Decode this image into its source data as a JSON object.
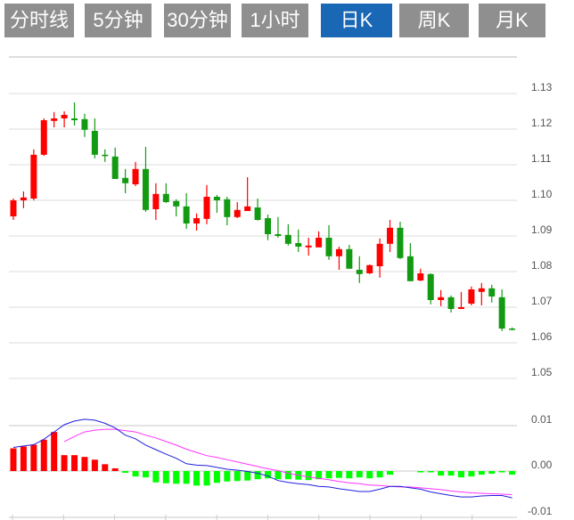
{
  "tabs": [
    {
      "label": "分时线",
      "active": false
    },
    {
      "label": "5分钟",
      "active": false
    },
    {
      "label": "30分钟",
      "active": false
    },
    {
      "label": "1小时",
      "active": false
    },
    {
      "label": "日K",
      "active": true
    },
    {
      "label": "周K",
      "active": false
    },
    {
      "label": "月K",
      "active": false
    }
  ],
  "colors": {
    "tab_bg": "#8f8f8f",
    "tab_active": "#1a67b5",
    "up": "#ff0000",
    "down": "#129b12",
    "hist_up": "#ff0000",
    "hist_down": "#00ff00",
    "dif": "#1f1fdc",
    "dea": "#ff33ff"
  },
  "chart_data": [
    {
      "type": "candlestick",
      "ylim": [
        1.05,
        1.13
      ],
      "y_ticks": [
        "1.13",
        "1.12",
        "1.11",
        "1.10",
        "1.09",
        "1.08",
        "1.07",
        "1.06",
        "1.05"
      ],
      "ohlc": [
        [
          1.0955,
          1.1005,
          1.0945,
          1.1
        ],
        [
          1.1,
          1.1025,
          1.0978,
          1.1008
        ],
        [
          1.1005,
          1.1143,
          1.1,
          1.1128
        ],
        [
          1.1128,
          1.123,
          1.1125,
          1.1225
        ],
        [
          1.1223,
          1.1248,
          1.1205,
          1.123
        ],
        [
          1.123,
          1.125,
          1.1205,
          1.124
        ],
        [
          1.123,
          1.1275,
          1.121,
          1.1225
        ],
        [
          1.1228,
          1.1243,
          1.1178,
          1.1198
        ],
        [
          1.1195,
          1.123,
          1.1118,
          1.1128
        ],
        [
          1.1128,
          1.1143,
          1.1108,
          1.1125
        ],
        [
          1.1123,
          1.1148,
          1.106,
          1.106
        ],
        [
          1.1063,
          1.1088,
          1.102,
          1.1048
        ],
        [
          1.1045,
          1.1108,
          1.104,
          1.1088
        ],
        [
          1.1088,
          1.115,
          1.0968,
          1.0973
        ],
        [
          1.0975,
          1.1048,
          1.0945,
          1.1018
        ],
        [
          1.1018,
          1.1048,
          1.0993,
          1.0995
        ],
        [
          1.0998,
          1.1003,
          1.0955,
          1.0983
        ],
        [
          1.0983,
          1.102,
          1.092,
          1.0935
        ],
        [
          1.0935,
          1.0963,
          1.0915,
          1.095
        ],
        [
          1.0948,
          1.1043,
          1.0933,
          1.101
        ],
        [
          1.101,
          1.1015,
          1.0965,
          1.1
        ],
        [
          1.1003,
          1.101,
          1.093,
          1.0953
        ],
        [
          1.0953,
          1.0995,
          1.095,
          1.0973
        ],
        [
          1.097,
          1.1065,
          1.097,
          1.0983
        ],
        [
          1.098,
          1.1005,
          1.0943,
          1.0945
        ],
        [
          1.095,
          1.096,
          1.0888,
          1.0905
        ],
        [
          1.0905,
          1.0953,
          1.0895,
          1.09
        ],
        [
          1.0903,
          1.0933,
          1.0873,
          1.0878
        ],
        [
          1.088,
          1.0918,
          1.0855,
          1.087
        ],
        [
          1.0868,
          1.0895,
          1.0845,
          1.0873
        ],
        [
          1.0868,
          1.0913,
          1.0868,
          1.0895
        ],
        [
          1.0895,
          1.093,
          1.0833,
          1.0843
        ],
        [
          1.0843,
          1.087,
          1.0805,
          1.0863
        ],
        [
          1.0863,
          1.0875,
          1.0808,
          1.0808
        ],
        [
          1.0805,
          1.0843,
          1.0768,
          1.0793
        ],
        [
          1.0795,
          1.082,
          1.0793,
          1.0818
        ],
        [
          1.0815,
          1.0893,
          1.0783,
          1.0878
        ],
        [
          1.0878,
          1.0945,
          1.0855,
          1.0923
        ],
        [
          1.0923,
          1.094,
          1.0835,
          1.0838
        ],
        [
          1.0843,
          1.088,
          1.0773,
          1.0773
        ],
        [
          1.0775,
          1.0808,
          1.0773,
          1.0795
        ],
        [
          1.0793,
          1.0795,
          1.0708,
          1.072
        ],
        [
          1.072,
          1.0748,
          1.0703,
          1.0728
        ],
        [
          1.0728,
          1.0733,
          1.0685,
          1.0695
        ],
        [
          1.0695,
          1.0743,
          1.0695,
          1.07
        ],
        [
          1.071,
          1.0758,
          1.0705,
          1.075
        ],
        [
          1.0743,
          1.0768,
          1.0705,
          1.0753
        ],
        [
          1.0753,
          1.0763,
          1.0713,
          1.073
        ],
        [
          1.0728,
          1.075,
          1.0633,
          1.064
        ],
        [
          1.064,
          1.0643,
          1.0635,
          1.0638
        ]
      ],
      "grid": true
    },
    {
      "type": "macd",
      "ylim": [
        -0.01,
        0.01
      ],
      "y_ticks": [
        "0.01",
        "0.00",
        "-0.01"
      ],
      "histogram": [
        0.005,
        0.0054,
        0.0058,
        0.0069,
        0.0086,
        0.0035,
        0.0035,
        0.0031,
        0.0025,
        0.0015,
        0.0006,
        -0.0004,
        -0.0012,
        -0.0014,
        -0.0025,
        -0.0027,
        -0.0028,
        -0.0028,
        -0.0032,
        -0.0032,
        -0.0026,
        -0.0023,
        -0.0022,
        -0.0021,
        -0.0018,
        -0.0016,
        -0.0018,
        -0.0018,
        -0.0019,
        -0.002,
        -0.0018,
        -0.0016,
        -0.0015,
        -0.0016,
        -0.0014,
        -0.0016,
        -0.0014,
        -0.0008,
        0,
        0,
        -0.0003,
        -0.0003,
        -0.001,
        -0.001,
        -0.0014,
        -0.0012,
        -0.0008,
        -0.0006,
        -0.0003,
        -0.0008
      ],
      "dif": [
        0.0052,
        0.0055,
        0.0058,
        0.007,
        0.0086,
        0.0102,
        0.011,
        0.0114,
        0.0112,
        0.0105,
        0.0095,
        0.0079,
        0.0071,
        0.0057,
        0.0047,
        0.0037,
        0.0028,
        0.0016,
        0.0013,
        0.0012,
        0.0008,
        0.0004,
        0.0002,
        -0.0001,
        -0.0005,
        -0.0011,
        -0.0021,
        -0.0025,
        -0.0028,
        -0.003,
        -0.0034,
        -0.0035,
        -0.0039,
        -0.0042,
        -0.0045,
        -0.0045,
        -0.004,
        -0.0034,
        -0.0034,
        -0.0037,
        -0.004,
        -0.0046,
        -0.005,
        -0.0054,
        -0.0057,
        -0.0057,
        -0.0055,
        -0.0054,
        -0.0054,
        -0.0059
      ],
      "dea": [
        null,
        null,
        null,
        null,
        null,
        0.0065,
        0.0076,
        0.0086,
        0.009,
        0.0092,
        0.0092,
        0.0089,
        0.0086,
        0.0079,
        0.0073,
        0.0065,
        0.0057,
        0.0048,
        0.0041,
        0.0034,
        0.003,
        0.0025,
        0.002,
        0.0015,
        0.001,
        0.0005,
        0.0001,
        -0.0005,
        -0.0009,
        -0.0013,
        -0.0016,
        -0.0019,
        -0.0023,
        -0.0026,
        -0.0028,
        -0.0031,
        -0.0032,
        -0.0034,
        -0.0035,
        -0.0035,
        -0.0037,
        -0.0039,
        -0.0041,
        -0.0044,
        -0.0046,
        -0.0048,
        -0.0049,
        -0.005,
        -0.0051,
        -0.0052
      ]
    }
  ]
}
